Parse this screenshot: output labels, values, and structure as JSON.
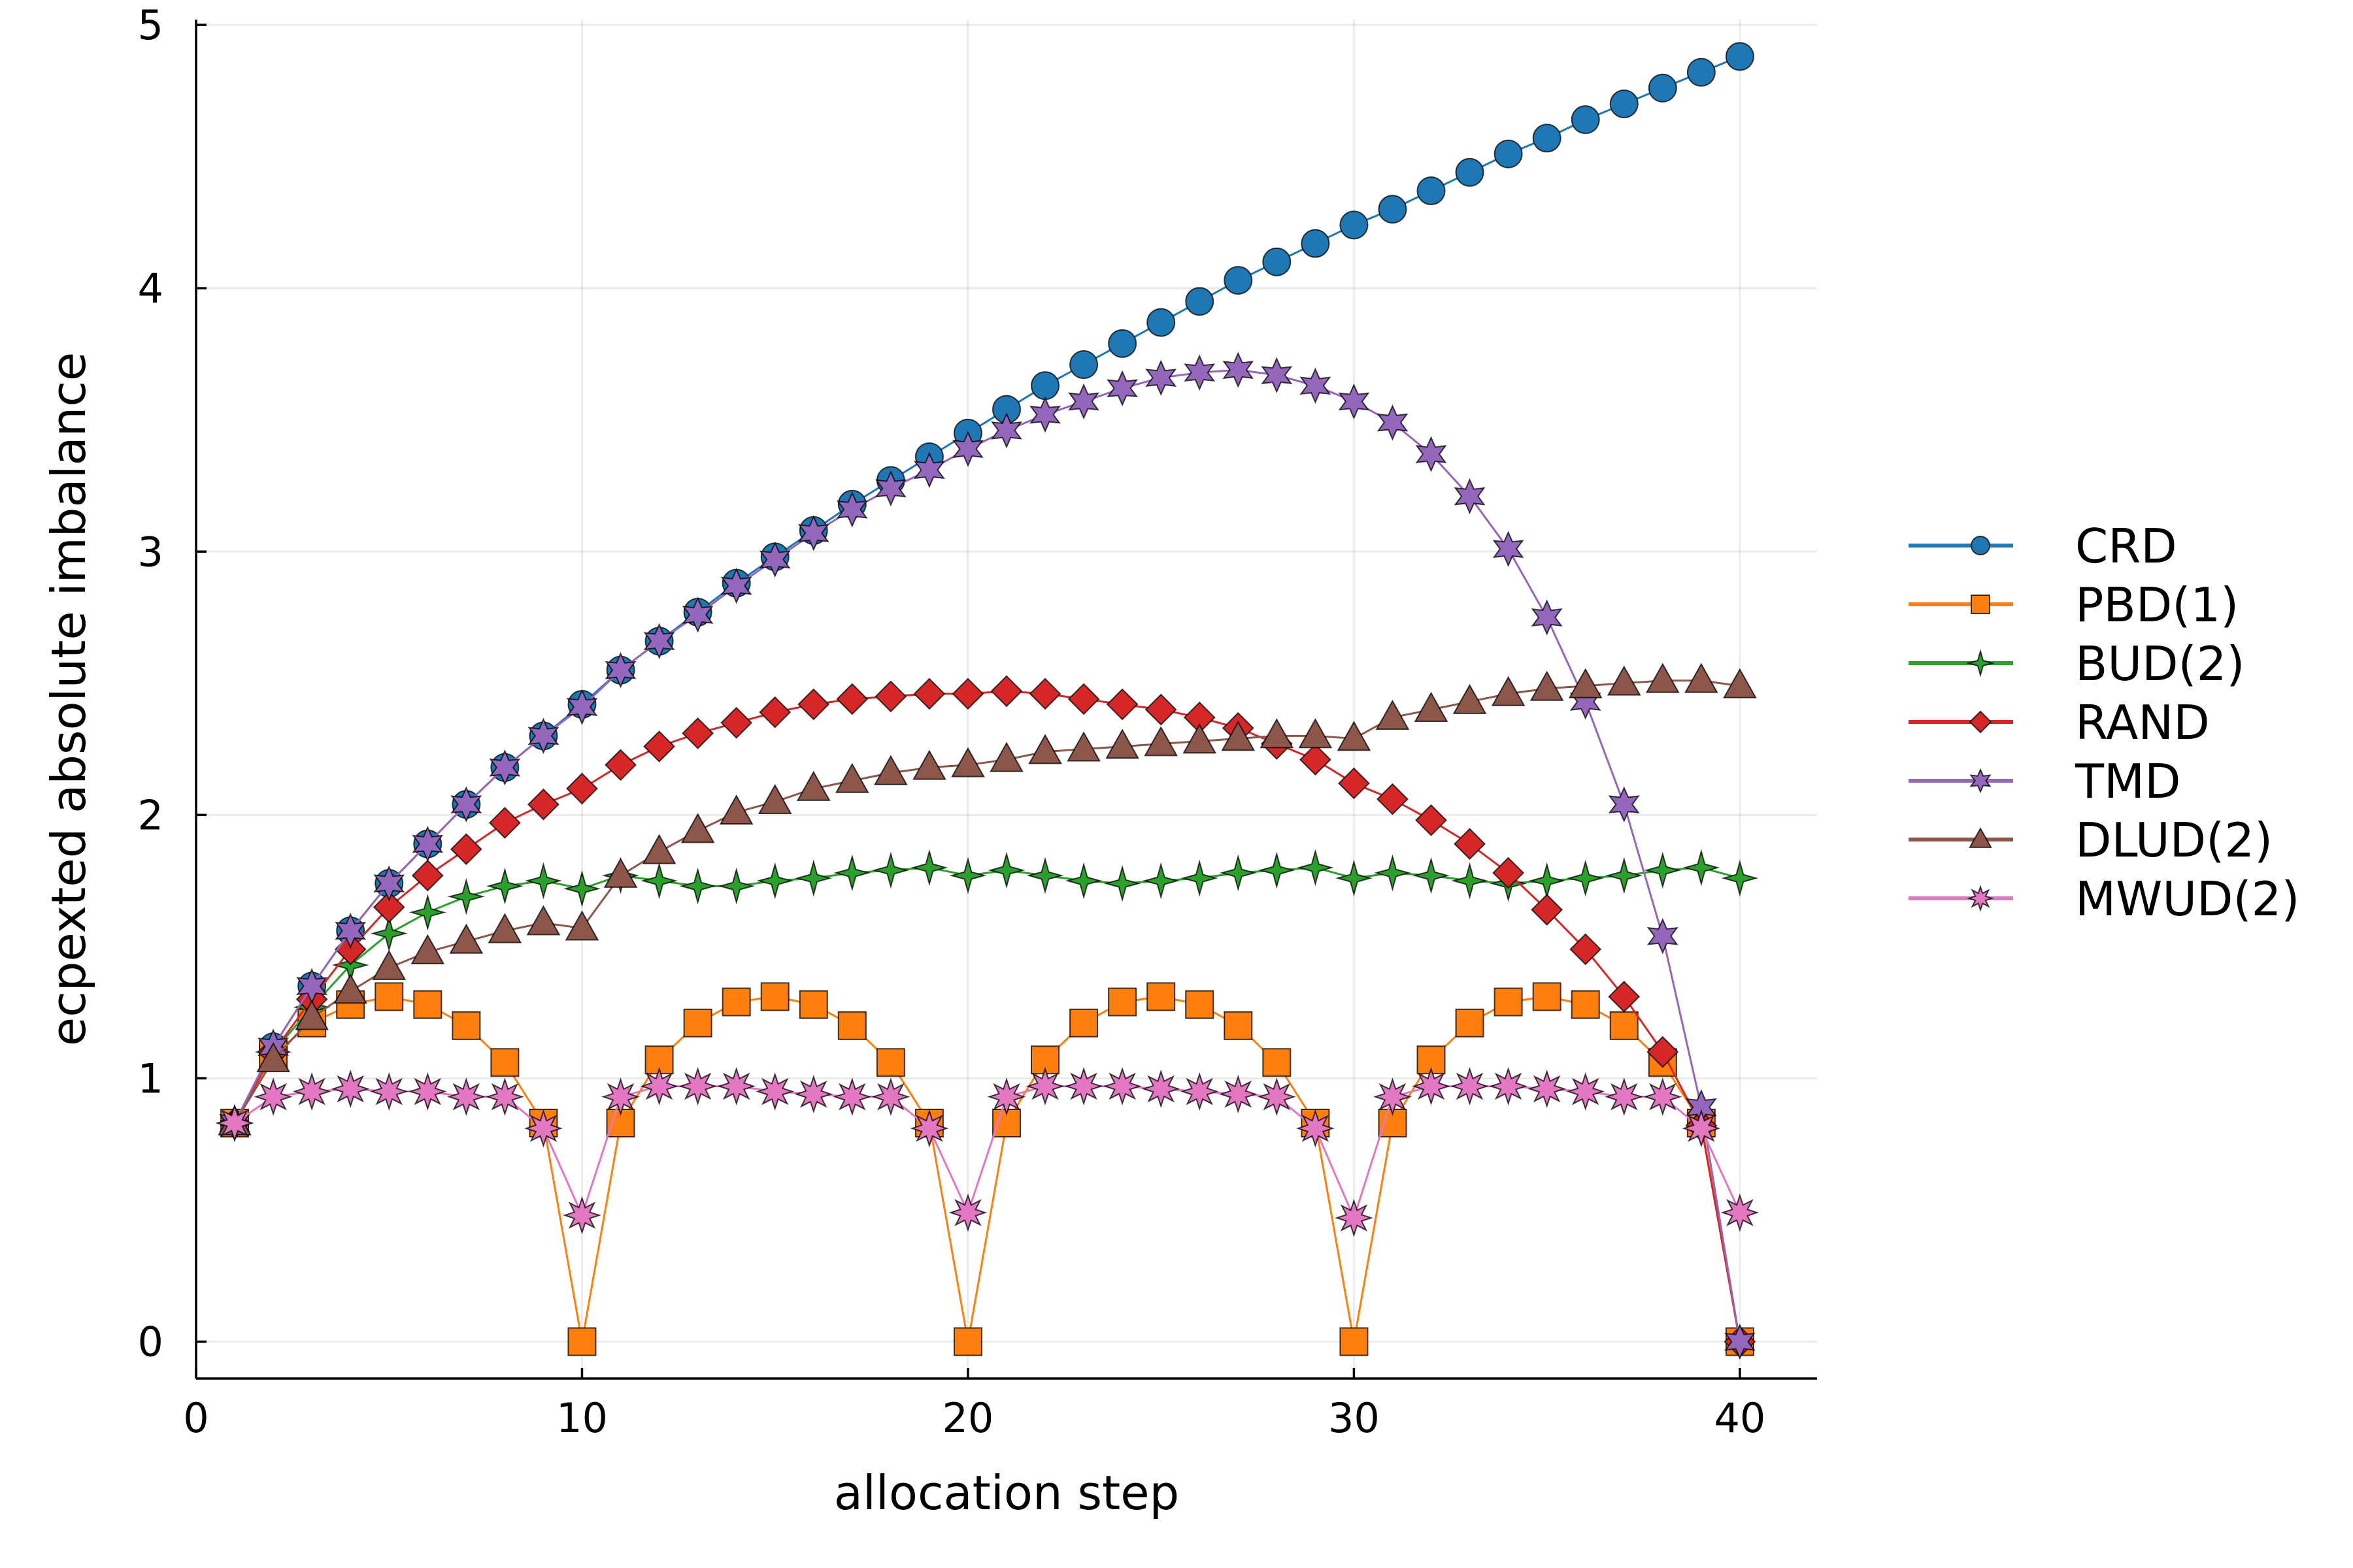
{
  "chart_data": {
    "type": "line",
    "xlabel": "allocation step",
    "ylabel": "ecpexted absolute imbalance",
    "xlim": [
      0,
      42
    ],
    "ylim": [
      -0.14,
      5.02
    ],
    "x_ticks": [
      0,
      10,
      20,
      30,
      40
    ],
    "y_ticks": [
      0,
      1,
      2,
      3,
      4,
      5
    ],
    "grid": true,
    "legend_position": "right",
    "x": [
      1,
      2,
      3,
      4,
      5,
      6,
      7,
      8,
      9,
      10,
      11,
      12,
      13,
      14,
      15,
      16,
      17,
      18,
      19,
      20,
      21,
      22,
      23,
      24,
      25,
      26,
      27,
      28,
      29,
      30,
      31,
      32,
      33,
      34,
      35,
      36,
      37,
      38,
      39,
      40
    ],
    "series": [
      {
        "name": "CRD",
        "color": "#1f77b4",
        "marker": "circle",
        "values": [
          0.83,
          1.12,
          1.35,
          1.56,
          1.74,
          1.89,
          2.04,
          2.18,
          2.3,
          2.42,
          2.55,
          2.66,
          2.77,
          2.88,
          2.98,
          3.08,
          3.18,
          3.27,
          3.36,
          3.45,
          3.54,
          3.63,
          3.71,
          3.79,
          3.87,
          3.95,
          4.03,
          4.1,
          4.17,
          4.24,
          4.3,
          4.37,
          4.44,
          4.51,
          4.57,
          4.64,
          4.7,
          4.76,
          4.82,
          4.88
        ]
      },
      {
        "name": "PBD(1)",
        "color": "#ff7f0e",
        "marker": "square",
        "values": [
          0.83,
          1.09,
          1.21,
          1.28,
          1.31,
          1.28,
          1.2,
          1.06,
          0.83,
          0.0,
          0.83,
          1.07,
          1.21,
          1.29,
          1.31,
          1.28,
          1.2,
          1.06,
          0.83,
          0.0,
          0.83,
          1.07,
          1.21,
          1.29,
          1.31,
          1.28,
          1.2,
          1.06,
          0.83,
          0.0,
          0.83,
          1.07,
          1.21,
          1.29,
          1.31,
          1.28,
          1.2,
          1.06,
          0.83,
          0.0
        ]
      },
      {
        "name": "BUD(2)",
        "color": "#2ca02c",
        "marker": "star4",
        "values": [
          0.83,
          1.1,
          1.27,
          1.43,
          1.55,
          1.63,
          1.69,
          1.73,
          1.75,
          1.72,
          1.77,
          1.75,
          1.73,
          1.73,
          1.75,
          1.76,
          1.78,
          1.79,
          1.8,
          1.77,
          1.79,
          1.77,
          1.75,
          1.74,
          1.75,
          1.76,
          1.78,
          1.79,
          1.8,
          1.76,
          1.78,
          1.77,
          1.75,
          1.74,
          1.75,
          1.76,
          1.77,
          1.79,
          1.8,
          1.76
        ]
      },
      {
        "name": "RAND",
        "color": "#d62728",
        "marker": "diamond",
        "values": [
          0.83,
          1.1,
          1.3,
          1.49,
          1.65,
          1.77,
          1.87,
          1.97,
          2.04,
          2.1,
          2.19,
          2.26,
          2.31,
          2.35,
          2.39,
          2.42,
          2.44,
          2.45,
          2.46,
          2.46,
          2.47,
          2.46,
          2.44,
          2.42,
          2.4,
          2.37,
          2.33,
          2.27,
          2.21,
          2.12,
          2.06,
          1.98,
          1.89,
          1.78,
          1.64,
          1.49,
          1.31,
          1.1,
          0.82,
          0.0
        ]
      },
      {
        "name": "TMD",
        "color": "#9467bd",
        "marker": "star6",
        "values": [
          0.83,
          1.12,
          1.35,
          1.56,
          1.74,
          1.89,
          2.04,
          2.18,
          2.3,
          2.41,
          2.55,
          2.66,
          2.76,
          2.87,
          2.97,
          3.07,
          3.16,
          3.24,
          3.31,
          3.39,
          3.46,
          3.52,
          3.57,
          3.62,
          3.66,
          3.68,
          3.69,
          3.67,
          3.63,
          3.57,
          3.49,
          3.37,
          3.21,
          3.01,
          2.75,
          2.43,
          2.04,
          1.54,
          0.89,
          0.0
        ]
      },
      {
        "name": "DLUD(2)",
        "color": "#8c564b",
        "marker": "triangle",
        "values": [
          0.83,
          1.07,
          1.23,
          1.33,
          1.42,
          1.48,
          1.52,
          1.56,
          1.59,
          1.57,
          1.77,
          1.86,
          1.94,
          2.01,
          2.05,
          2.1,
          2.13,
          2.16,
          2.18,
          2.19,
          2.21,
          2.24,
          2.25,
          2.26,
          2.27,
          2.28,
          2.29,
          2.3,
          2.3,
          2.29,
          2.37,
          2.4,
          2.43,
          2.46,
          2.48,
          2.49,
          2.5,
          2.51,
          2.51,
          2.49
        ]
      },
      {
        "name": "MWUD(2)",
        "color": "#e377c2",
        "marker": "star8",
        "values": [
          0.83,
          0.93,
          0.95,
          0.96,
          0.95,
          0.95,
          0.93,
          0.93,
          0.81,
          0.48,
          0.93,
          0.97,
          0.97,
          0.97,
          0.95,
          0.94,
          0.93,
          0.93,
          0.81,
          0.49,
          0.93,
          0.97,
          0.97,
          0.97,
          0.96,
          0.95,
          0.94,
          0.93,
          0.81,
          0.47,
          0.93,
          0.97,
          0.97,
          0.97,
          0.96,
          0.95,
          0.93,
          0.93,
          0.81,
          0.49
        ]
      }
    ]
  }
}
